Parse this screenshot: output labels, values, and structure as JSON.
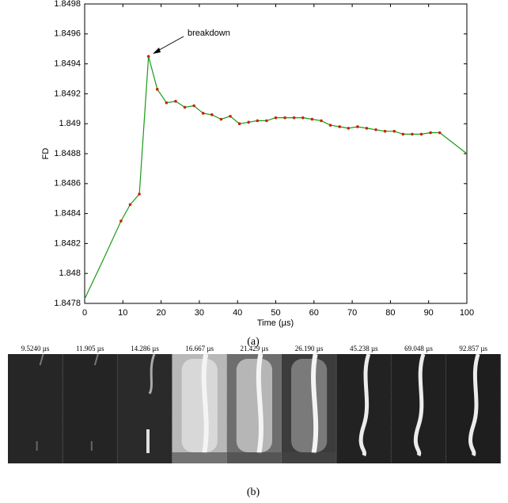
{
  "chart_data": {
    "type": "line",
    "xlabel": "Time (µs)",
    "ylabel": "FD",
    "xlim": [
      0,
      100
    ],
    "xticks": [
      0,
      10,
      20,
      30,
      40,
      50,
      60,
      70,
      80,
      90,
      100
    ],
    "ylim": [
      1.8478,
      1.8498
    ],
    "yticks": [
      1.8478,
      1.848,
      1.8482,
      1.8484,
      1.8486,
      1.8488,
      1.849,
      1.8492,
      1.8494,
      1.8496,
      1.8498
    ],
    "annotation": "breakdown",
    "curve": {
      "color": "#1a9a1a",
      "x": [
        0,
        5,
        9.5,
        11.9,
        14.3,
        16.7,
        19.0,
        21.4,
        23.8,
        26.2,
        28.6,
        31.0,
        33.3,
        35.7,
        38.1,
        40.5,
        42.9,
        45.2,
        47.6,
        50,
        52.4,
        54.8,
        57.1,
        59.5,
        61.9,
        64.3,
        66.7,
        69.0,
        71.4,
        73.8,
        76.2,
        78.6,
        81.0,
        83.3,
        85.7,
        88.1,
        90.5,
        92.9,
        100
      ],
      "values": [
        1.84783,
        1.8481,
        1.84835,
        1.84846,
        1.84853,
        1.84945,
        1.84923,
        1.84914,
        1.84915,
        1.84911,
        1.84912,
        1.84907,
        1.84906,
        1.84903,
        1.84905,
        1.849,
        1.84901,
        1.84902,
        1.84902,
        1.84904,
        1.84904,
        1.84904,
        1.84904,
        1.84903,
        1.84902,
        1.84899,
        1.84898,
        1.84897,
        1.84898,
        1.84897,
        1.84896,
        1.84895,
        1.84895,
        1.84893,
        1.84893,
        1.84893,
        1.84894,
        1.84894,
        1.8488
      ]
    },
    "points": {
      "color": "#cc2200",
      "x": [
        9.5,
        11.9,
        14.3,
        16.7,
        19.0,
        21.4,
        23.8,
        26.2,
        28.6,
        31.0,
        33.3,
        35.7,
        38.1,
        40.5,
        42.9,
        45.2,
        47.6,
        50,
        52.4,
        54.8,
        57.1,
        59.5,
        61.9,
        64.3,
        66.7,
        69.0,
        71.4,
        73.8,
        76.2,
        78.6,
        81.0,
        83.3,
        85.7,
        88.1,
        90.5,
        92.9
      ],
      "values": [
        1.84835,
        1.84846,
        1.84853,
        1.84945,
        1.84923,
        1.84914,
        1.84915,
        1.84911,
        1.84912,
        1.84907,
        1.84906,
        1.84903,
        1.84905,
        1.849,
        1.84901,
        1.84902,
        1.84902,
        1.84904,
        1.84904,
        1.84904,
        1.84904,
        1.84903,
        1.84902,
        1.84899,
        1.84898,
        1.84897,
        1.84898,
        1.84897,
        1.84896,
        1.84895,
        1.84895,
        1.84893,
        1.84893,
        1.84893,
        1.84894,
        1.84894
      ]
    }
  },
  "caption_a": "(a)",
  "frames": [
    "9.5240 µs",
    "11.905 µs",
    "14.286 µs",
    "16.667 µs",
    "21.429 µs",
    "26.190 µs",
    "45.238 µs",
    "69.048 µs",
    "92.857 µs"
  ],
  "caption_b": "(b)"
}
